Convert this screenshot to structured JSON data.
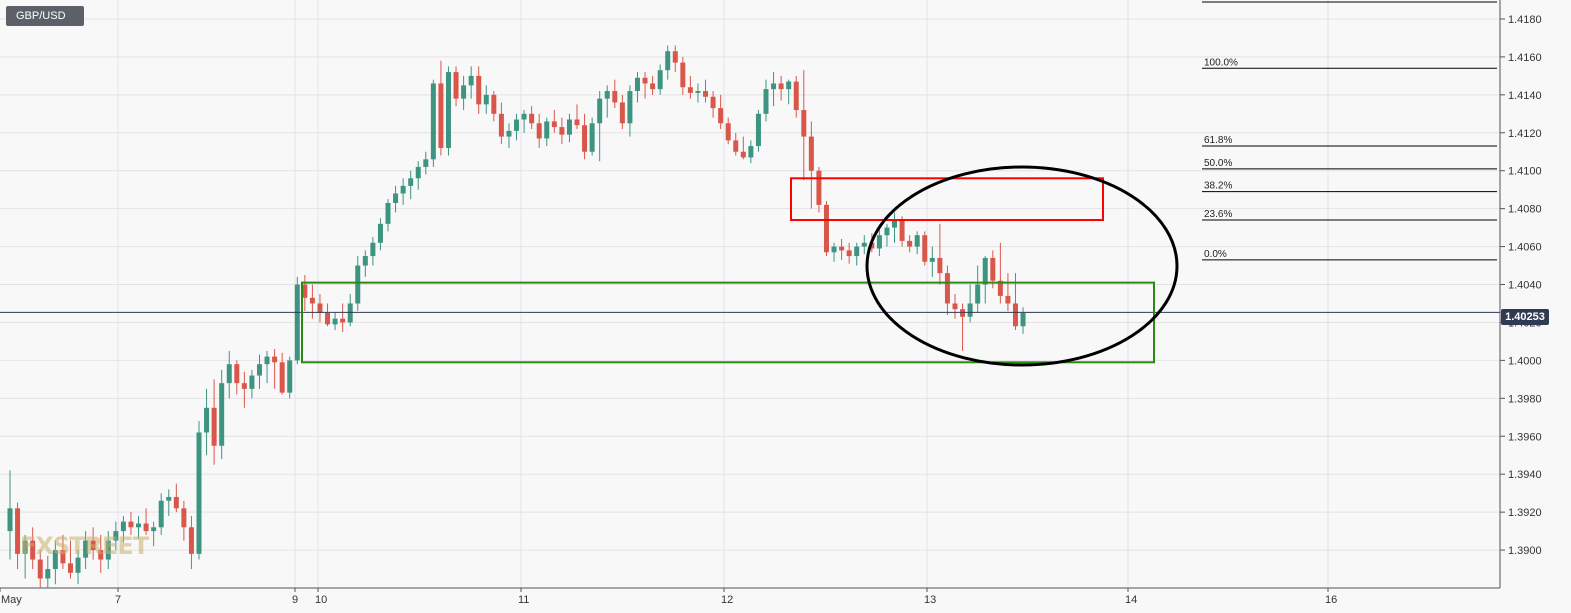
{
  "symbol": "GBP/USD",
  "watermark": "FXSTREET",
  "colors": {
    "up": "#3d9480",
    "down": "#d9574a",
    "fib": "#000000",
    "current": "#2f3b53",
    "red_box": "#ff0000",
    "green_box": "#2a8a14",
    "ellipse": "#000000",
    "grid": "#e3e3e6"
  },
  "chart_data": {
    "type": "candlestick",
    "y_range": [
      1.388,
      1.419
    ],
    "y_ticks": [
      "1.4180",
      "1.4160",
      "1.4140",
      "1.4120",
      "1.4100",
      "1.4080",
      "1.4060",
      "1.4040",
      "1.4020",
      "1.4000",
      "1.3980",
      "1.3960",
      "1.3940",
      "1.3920",
      "1.3900"
    ],
    "x_ticks": [
      "May",
      "7",
      "9",
      "10",
      "11",
      "12",
      "13",
      "14",
      "16"
    ],
    "current_price": "1.40253",
    "fib_levels": [
      {
        "label": "100.0%",
        "price": 1.4154
      },
      {
        "label": "61.8%",
        "price": 1.4113
      },
      {
        "label": "50.0%",
        "price": 1.4101
      },
      {
        "label": "38.2%",
        "price": 1.4089
      },
      {
        "label": "23.6%",
        "price": 1.4074
      },
      {
        "label": "0.0%",
        "price": 1.4053
      }
    ],
    "annotations": [
      {
        "type": "rectangle",
        "color": "red",
        "price_high": 1.4096,
        "price_low": 1.4074
      },
      {
        "type": "rectangle",
        "color": "green",
        "price_high": 1.4041,
        "price_low": 1.3999
      },
      {
        "type": "ellipse",
        "color": "black"
      }
    ],
    "candles": [
      [
        1.391,
        1.3942,
        1.3895,
        1.3922
      ],
      [
        1.3922,
        1.3925,
        1.389,
        1.3898
      ],
      [
        1.3898,
        1.3908,
        1.3885,
        1.3905
      ],
      [
        1.3905,
        1.3912,
        1.389,
        1.3895
      ],
      [
        1.3895,
        1.39,
        1.388,
        1.3885
      ],
      [
        1.3885,
        1.3897,
        1.388,
        1.389
      ],
      [
        1.389,
        1.3905,
        1.3882,
        1.39
      ],
      [
        1.39,
        1.3908,
        1.389,
        1.3893
      ],
      [
        1.3893,
        1.3905,
        1.3885,
        1.3888
      ],
      [
        1.3888,
        1.39,
        1.3882,
        1.3896
      ],
      [
        1.3896,
        1.391,
        1.389,
        1.3905
      ],
      [
        1.3905,
        1.3912,
        1.3895,
        1.39
      ],
      [
        1.39,
        1.3908,
        1.3888,
        1.3895
      ],
      [
        1.3895,
        1.391,
        1.389,
        1.3905
      ],
      [
        1.3905,
        1.3915,
        1.39,
        1.391
      ],
      [
        1.391,
        1.3918,
        1.3904,
        1.3915
      ],
      [
        1.3915,
        1.392,
        1.3908,
        1.3912
      ],
      [
        1.3912,
        1.3918,
        1.3906,
        1.3914
      ],
      [
        1.3914,
        1.3922,
        1.3908,
        1.391
      ],
      [
        1.391,
        1.3915,
        1.3902,
        1.3912
      ],
      [
        1.3912,
        1.393,
        1.3908,
        1.3926
      ],
      [
        1.3926,
        1.3932,
        1.3918,
        1.3928
      ],
      [
        1.3928,
        1.3935,
        1.392,
        1.3922
      ],
      [
        1.3922,
        1.3926,
        1.3905,
        1.3912
      ],
      [
        1.3912,
        1.3918,
        1.389,
        1.3898
      ],
      [
        1.3898,
        1.3968,
        1.3895,
        1.3962
      ],
      [
        1.3962,
        1.3985,
        1.395,
        1.3975
      ],
      [
        1.3975,
        1.399,
        1.3945,
        1.3955
      ],
      [
        1.3955,
        1.3995,
        1.3948,
        1.3988
      ],
      [
        1.3988,
        1.4005,
        1.398,
        1.3998
      ],
      [
        1.3998,
        1.4,
        1.3982,
        1.3988
      ],
      [
        1.3988,
        1.3994,
        1.3975,
        1.3985
      ],
      [
        1.3985,
        1.3995,
        1.398,
        1.3992
      ],
      [
        1.3992,
        1.4003,
        1.3985,
        1.3998
      ],
      [
        1.3998,
        1.4005,
        1.3988,
        1.4002
      ],
      [
        1.4002,
        1.4006,
        1.3985,
        1.3999
      ],
      [
        1.3999,
        1.4004,
        1.3982,
        1.3983
      ],
      [
        1.3983,
        1.4002,
        1.398,
        1.4
      ],
      [
        1.4,
        1.4044,
        1.3998,
        1.404
      ],
      [
        1.404,
        1.4045,
        1.4026,
        1.4033
      ],
      [
        1.4033,
        1.404,
        1.4022,
        1.403
      ],
      [
        1.403,
        1.4035,
        1.402,
        1.4025
      ],
      [
        1.4025,
        1.403,
        1.4018,
        1.4019
      ],
      [
        1.4019,
        1.4025,
        1.4016,
        1.4022
      ],
      [
        1.4022,
        1.403,
        1.4015,
        1.402
      ],
      [
        1.402,
        1.4035,
        1.4018,
        1.403
      ],
      [
        1.403,
        1.4055,
        1.4026,
        1.405
      ],
      [
        1.405,
        1.4058,
        1.4044,
        1.4055
      ],
      [
        1.4055,
        1.4065,
        1.405,
        1.4062
      ],
      [
        1.4062,
        1.4075,
        1.4058,
        1.4072
      ],
      [
        1.4072,
        1.4085,
        1.4068,
        1.4083
      ],
      [
        1.4083,
        1.4092,
        1.4078,
        1.4088
      ],
      [
        1.4088,
        1.4096,
        1.4082,
        1.4092
      ],
      [
        1.4092,
        1.41,
        1.4085,
        1.4096
      ],
      [
        1.4096,
        1.4105,
        1.409,
        1.4102
      ],
      [
        1.4102,
        1.411,
        1.4098,
        1.4106
      ],
      [
        1.4106,
        1.4148,
        1.4102,
        1.4146
      ],
      [
        1.4146,
        1.4158,
        1.4108,
        1.4112
      ],
      [
        1.4112,
        1.4155,
        1.4108,
        1.4152
      ],
      [
        1.4152,
        1.4155,
        1.4134,
        1.4138
      ],
      [
        1.4138,
        1.415,
        1.4132,
        1.4145
      ],
      [
        1.4145,
        1.4155,
        1.4138,
        1.415
      ],
      [
        1.415,
        1.4155,
        1.413,
        1.4135
      ],
      [
        1.4135,
        1.4145,
        1.413,
        1.414
      ],
      [
        1.414,
        1.4142,
        1.4126,
        1.413
      ],
      [
        1.413,
        1.4136,
        1.4114,
        1.4118
      ],
      [
        1.4118,
        1.4125,
        1.4112,
        1.4121
      ],
      [
        1.4121,
        1.413,
        1.4116,
        1.4127
      ],
      [
        1.4127,
        1.4132,
        1.412,
        1.413
      ],
      [
        1.413,
        1.4134,
        1.4122,
        1.4125
      ],
      [
        1.4125,
        1.413,
        1.4112,
        1.4117
      ],
      [
        1.4117,
        1.4128,
        1.4113,
        1.4126
      ],
      [
        1.4126,
        1.4132,
        1.412,
        1.4123
      ],
      [
        1.4123,
        1.4128,
        1.4114,
        1.4119
      ],
      [
        1.4119,
        1.413,
        1.4115,
        1.4127
      ],
      [
        1.4127,
        1.4135,
        1.4122,
        1.4124
      ],
      [
        1.4124,
        1.413,
        1.4106,
        1.411
      ],
      [
        1.411,
        1.4128,
        1.4108,
        1.4125
      ],
      [
        1.4125,
        1.4142,
        1.4105,
        1.4138
      ],
      [
        1.4138,
        1.4145,
        1.4128,
        1.4142
      ],
      [
        1.4142,
        1.4148,
        1.4133,
        1.4136
      ],
      [
        1.4136,
        1.414,
        1.4122,
        1.4125
      ],
      [
        1.4125,
        1.4145,
        1.4118,
        1.4142
      ],
      [
        1.4142,
        1.4152,
        1.4136,
        1.4149
      ],
      [
        1.4149,
        1.4152,
        1.4138,
        1.4146
      ],
      [
        1.4146,
        1.415,
        1.414,
        1.4143
      ],
      [
        1.4143,
        1.4156,
        1.414,
        1.4153
      ],
      [
        1.4153,
        1.4166,
        1.4148,
        1.4163
      ],
      [
        1.4163,
        1.4166,
        1.4152,
        1.4157
      ],
      [
        1.4157,
        1.416,
        1.414,
        1.4144
      ],
      [
        1.4144,
        1.415,
        1.4138,
        1.4141
      ],
      [
        1.4141,
        1.4146,
        1.4136,
        1.4142
      ],
      [
        1.4142,
        1.4148,
        1.4136,
        1.4139
      ],
      [
        1.4139,
        1.4142,
        1.4128,
        1.4133
      ],
      [
        1.4133,
        1.414,
        1.4122,
        1.4125
      ],
      [
        1.4125,
        1.4128,
        1.4114,
        1.4116
      ],
      [
        1.4116,
        1.412,
        1.4108,
        1.411
      ],
      [
        1.411,
        1.4118,
        1.4106,
        1.4107
      ],
      [
        1.4107,
        1.4116,
        1.4104,
        1.4113
      ],
      [
        1.4113,
        1.4132,
        1.411,
        1.413
      ],
      [
        1.413,
        1.4148,
        1.4126,
        1.4143
      ],
      [
        1.4143,
        1.4152,
        1.4134,
        1.4146
      ],
      [
        1.4146,
        1.415,
        1.4137,
        1.4143
      ],
      [
        1.4143,
        1.4148,
        1.4135,
        1.4147
      ],
      [
        1.4147,
        1.415,
        1.4128,
        1.4132
      ],
      [
        1.4132,
        1.4153,
        1.4095,
        1.4118
      ],
      [
        1.4118,
        1.4126,
        1.408,
        1.41
      ],
      [
        1.41,
        1.4102,
        1.4078,
        1.4082
      ],
      [
        1.4082,
        1.4084,
        1.4055,
        1.4057
      ],
      [
        1.4057,
        1.4062,
        1.4052,
        1.406
      ],
      [
        1.406,
        1.4064,
        1.4053,
        1.4058
      ],
      [
        1.4058,
        1.4062,
        1.4051,
        1.4055
      ],
      [
        1.4055,
        1.4062,
        1.405,
        1.406
      ],
      [
        1.406,
        1.4066,
        1.4056,
        1.4062
      ],
      [
        1.4062,
        1.4067,
        1.4057,
        1.4059
      ],
      [
        1.4059,
        1.407,
        1.4055,
        1.4066
      ],
      [
        1.4066,
        1.4072,
        1.406,
        1.407
      ],
      [
        1.407,
        1.4078,
        1.4062,
        1.4074
      ],
      [
        1.4074,
        1.4076,
        1.406,
        1.4063
      ],
      [
        1.4063,
        1.4066,
        1.4057,
        1.406
      ],
      [
        1.406,
        1.4068,
        1.4056,
        1.4066
      ],
      [
        1.4066,
        1.4068,
        1.405,
        1.4052
      ],
      [
        1.4052,
        1.406,
        1.4044,
        1.4054
      ],
      [
        1.4054,
        1.4072,
        1.404,
        1.4046
      ],
      [
        1.4046,
        1.405,
        1.4024,
        1.403
      ],
      [
        1.403,
        1.4035,
        1.4022,
        1.4027
      ],
      [
        1.4027,
        1.403,
        1.4005,
        1.4023
      ],
      [
        1.4023,
        1.404,
        1.402,
        1.403
      ],
      [
        1.403,
        1.405,
        1.4025,
        1.404
      ],
      [
        1.404,
        1.4055,
        1.403,
        1.4054
      ],
      [
        1.4054,
        1.4058,
        1.4038,
        1.4042
      ],
      [
        1.4042,
        1.4062,
        1.403,
        1.4034
      ],
      [
        1.4034,
        1.4046,
        1.4026,
        1.403
      ],
      [
        1.403,
        1.4046,
        1.4016,
        1.4018
      ],
      [
        1.4018,
        1.4028,
        1.4014,
        1.4025
      ]
    ]
  }
}
